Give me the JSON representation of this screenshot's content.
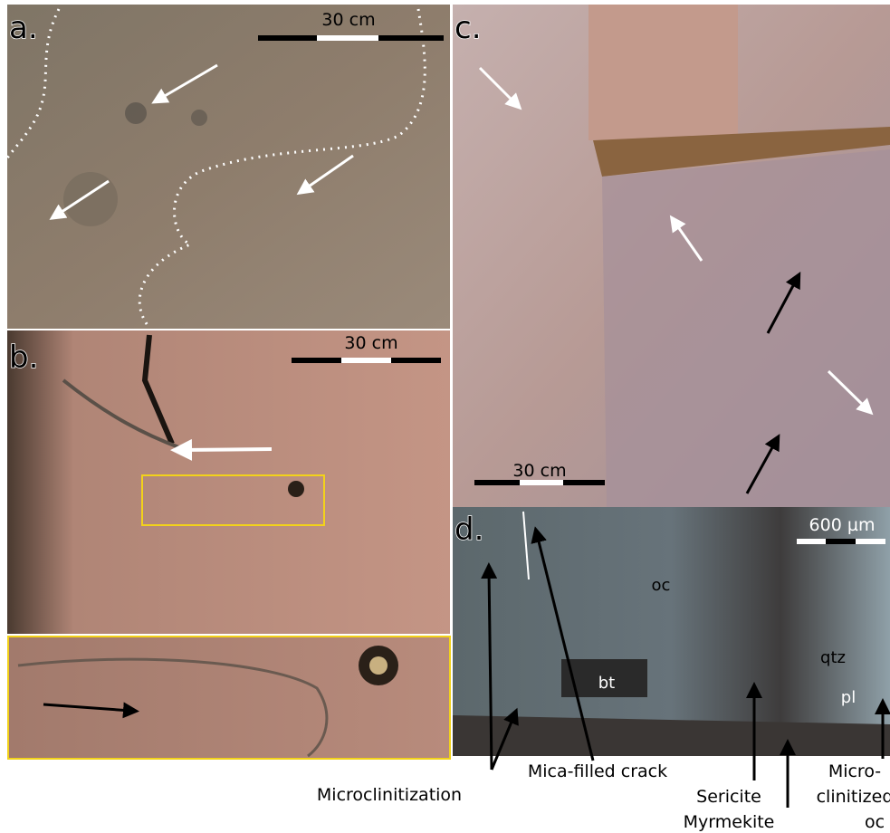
{
  "panels": [
    {
      "label": "a.",
      "scale": "30 cm"
    },
    {
      "label": "b.",
      "scale": "30 cm"
    },
    {
      "label": "c.",
      "scale": "30 cm"
    },
    {
      "label": "d.",
      "scale": "600 µm",
      "minerals": [
        "oc",
        "bt",
        "qtz",
        "pl"
      ]
    }
  ],
  "annotations": [
    "Microclinitization",
    "Mica-filled crack",
    "Sericite",
    "Myrmekite",
    "Micro-",
    "clinitized",
    "oc"
  ]
}
